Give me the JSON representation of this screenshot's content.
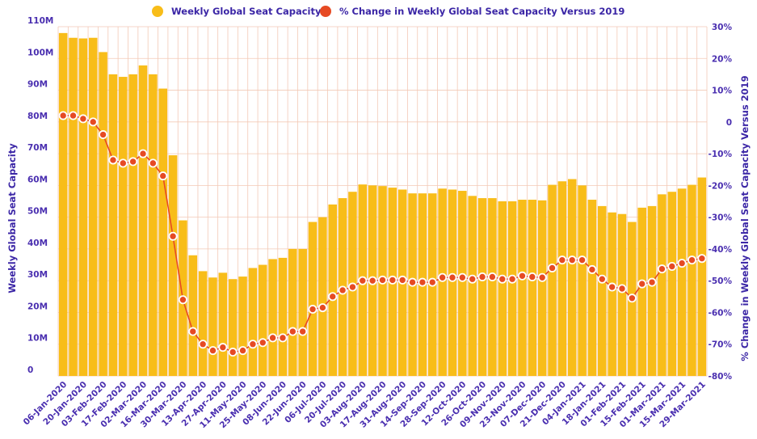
{
  "chart_data": {
    "type": "bar+line",
    "legend": {
      "position": "top-center",
      "items": [
        {
          "label": "Weekly Global Seat Capacity",
          "color": "#F8BD19",
          "marker": "circle"
        },
        {
          "label": "% Change in Weekly Global Seat Capacity Versus 2019",
          "color": "#E64A23",
          "marker": "circle"
        }
      ]
    },
    "ylabel": "Weekly Global Seat Capacity",
    "y2label": "% Change in Weekly Global Seat Capacity Versus 2019",
    "ylim": [
      0,
      110
    ],
    "y2lim": [
      -80,
      30
    ],
    "y_ticks": [
      "0",
      "10M",
      "20M",
      "30M",
      "40M",
      "50M",
      "60M",
      "70M",
      "80M",
      "90M",
      "100M",
      "110M"
    ],
    "y2_ticks": [
      "-80%",
      "-70%",
      "-60%",
      "-50%",
      "-40%",
      "-30%",
      "-20%",
      "-10%",
      "0",
      "10%",
      "20%",
      "30%"
    ],
    "grid": true,
    "x_tick_labels": [
      "06-Jan-2020",
      "20-Jan-2020",
      "03-Feb-2020",
      "17-Feb-2020",
      "02-Mar-2020",
      "16-Mar-2020",
      "30-Mar-2020",
      "13-Apr-2020",
      "27-Apr-2020",
      "11-May-2020",
      "25-May-2020",
      "08-Jun-2020",
      "22-Jun-2020",
      "06-Jul-2020",
      "20-Jul-2020",
      "03-Aug-2020",
      "17-Aug-2020",
      "31-Aug-2020",
      "14-Sep-2020",
      "28-Sep-2020",
      "12-Oct-2020",
      "26-Oct-2020",
      "09-Nov-2020",
      "23-Nov-2020",
      "07-Dec-2020",
      "21-Dec-2020",
      "04-Jan-2021",
      "18-Jan-2021",
      "01-Feb-2021",
      "15-Feb-2021",
      "01-Mar-2021",
      "15-Mar-2021",
      "29-Mar-2021"
    ],
    "series": [
      {
        "name": "Weekly Global Seat Capacity",
        "type": "bar",
        "color": "#F8BD19",
        "axis": "left",
        "values": [
          108,
          106.5,
          106.3,
          106.5,
          102,
          95,
          94.2,
          95,
          97.8,
          95,
          90.5,
          69.5,
          49,
          38,
          33,
          31,
          32.5,
          30.5,
          31.3,
          34,
          35,
          36.8,
          37.2,
          40,
          40,
          48.5,
          50,
          54,
          56,
          58,
          60.3,
          60,
          59.8,
          59.3,
          58.7,
          57.5,
          57.5,
          57.5,
          59,
          58.7,
          58.3,
          56.7,
          56,
          56,
          55,
          55,
          55.5,
          55.5,
          55.3,
          60.2,
          61.3,
          62,
          60,
          55.5,
          53.5,
          51.5,
          51,
          48.5,
          53,
          53.5,
          57.2,
          58,
          59,
          60.2,
          62.5
        ]
      },
      {
        "name": "% Change in Weekly Global Seat Capacity Versus 2019",
        "type": "line",
        "color": "#E64A23",
        "axis": "right",
        "values": [
          2,
          2,
          1,
          0,
          -4,
          -12,
          -13,
          -12.5,
          -10,
          -13,
          -17,
          -36,
          -56,
          -66,
          -70,
          -72,
          -71,
          -72.5,
          -72,
          -70,
          -69.5,
          -68,
          -68,
          -66,
          -66,
          -59,
          -58.5,
          -55,
          -53,
          -52,
          -50,
          -50,
          -49.8,
          -49.8,
          -49.8,
          -50.5,
          -50.5,
          -50.5,
          -49,
          -49,
          -49,
          -49.5,
          -48.8,
          -48.8,
          -49.5,
          -49.5,
          -48.5,
          -48.8,
          -49,
          -46,
          -43.5,
          -43.5,
          -43.5,
          -46.5,
          -49.5,
          -52,
          -52.5,
          -55.5,
          -51,
          -50.5,
          -46.3,
          -45.5,
          -44.5,
          -43.5,
          -43
        ]
      }
    ]
  }
}
